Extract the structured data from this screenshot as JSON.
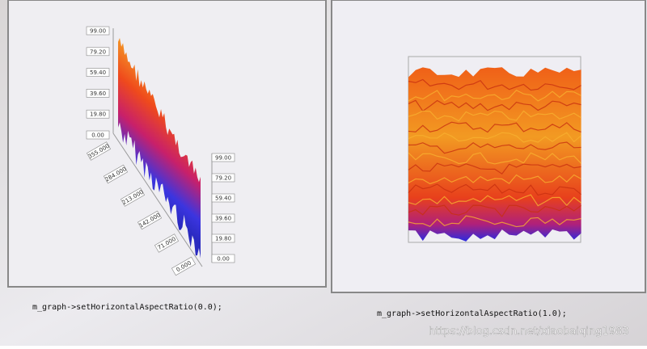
{
  "left_panel": {
    "z_ticks_left": [
      "99.00",
      "79.20",
      "59.40",
      "39.60",
      "19.80",
      "0.00"
    ],
    "z_ticks_right": [
      "99.00",
      "79.20",
      "59.40",
      "39.60",
      "19.80",
      "0.00"
    ],
    "depth_ticks": [
      "355.000",
      "284.000",
      "213.000",
      "142.000",
      "71.000",
      "0.000"
    ],
    "caption": "m_graph->setHorizontalAspectRatio(0.0);"
  },
  "right_panel": {
    "caption": "m_graph->setHorizontalAspectRatio(1.0);"
  },
  "watermark": "https://blog.csdn.net/xiaobaiqing1983"
}
